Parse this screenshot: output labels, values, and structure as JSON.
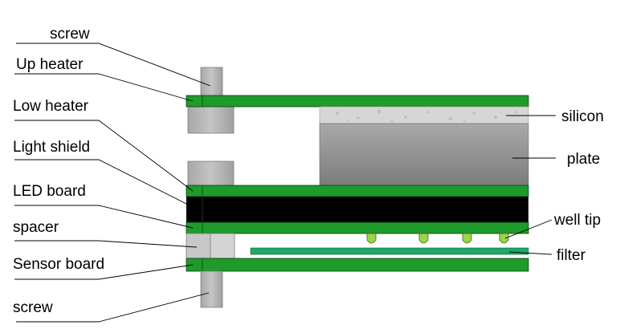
{
  "labels": {
    "screw_top": "screw",
    "up_heater": "Up heater",
    "low_heater": "Low heater",
    "light_shield": "Light shield",
    "led_board": "LED board",
    "spacer": "spacer",
    "sensor_board": "Sensor board",
    "screw_bottom": "screw",
    "silicon": "silicon",
    "plate": "plate",
    "well_tip": "well tip",
    "filter": "filter"
  },
  "colors": {
    "board_green": "#1e9b2b",
    "light_shield": "#000000",
    "screw_grey": "#bebebe",
    "plate_grey": "#8e8e8e",
    "silicon_grey": "#d6d6d6",
    "filter_teal": "#1fa866",
    "well_tip_green": "#9bd34a",
    "spacer_grey": "#c8c8c8"
  }
}
